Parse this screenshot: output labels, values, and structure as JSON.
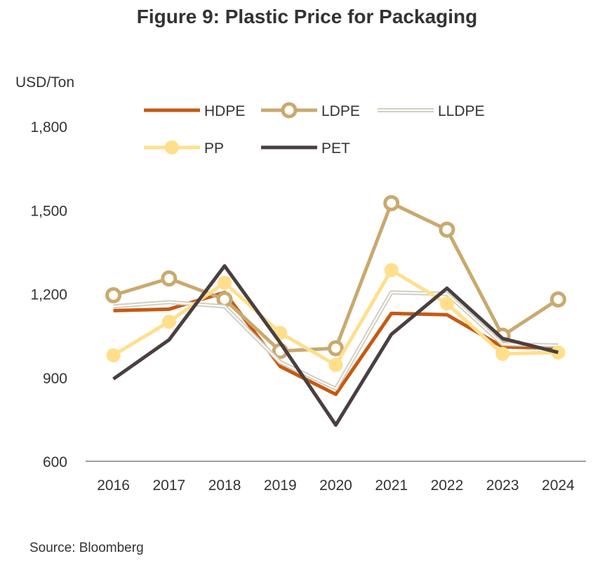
{
  "chart_data": {
    "type": "line",
    "title": "Figure 9: Plastic Price for Packaging",
    "ylabel": "USD/Ton",
    "xlabel": "",
    "source": "Source: Bloomberg",
    "categories": [
      "2016",
      "2017",
      "2018",
      "2019",
      "2020",
      "2021",
      "2022",
      "2023",
      "2024"
    ],
    "ylim": [
      600,
      1800
    ],
    "yticks": [
      600,
      900,
      1200,
      1500,
      1800
    ],
    "ytick_labels": [
      "600",
      "900",
      "1,200",
      "1,500",
      "1,800"
    ],
    "series": [
      {
        "name": "HDPE",
        "color": "#C55A11",
        "marker": "none",
        "values": [
          1140,
          1145,
          1205,
          940,
          840,
          1130,
          1125,
          1010,
          1005
        ]
      },
      {
        "name": "LDPE",
        "color": "#C9A96E",
        "marker": "open-circle",
        "values": [
          1195,
          1255,
          1180,
          995,
          1005,
          1525,
          1430,
          1050,
          1180
        ]
      },
      {
        "name": "LLDPE",
        "color": "#D2CFC1",
        "marker": "none",
        "double": true,
        "values": [
          1155,
          1170,
          1155,
          955,
          860,
          1205,
          1200,
          1020,
          1015
        ]
      },
      {
        "name": "PP",
        "color": "#FFDF8C",
        "marker": "filled-circle",
        "values": [
          980,
          1100,
          1240,
          1060,
          945,
          1285,
          1165,
          985,
          990
        ]
      },
      {
        "name": "PET",
        "color": "#4A3F3F",
        "marker": "none",
        "values": [
          895,
          1035,
          1300,
          1025,
          730,
          1055,
          1220,
          1040,
          990
        ]
      }
    ]
  }
}
